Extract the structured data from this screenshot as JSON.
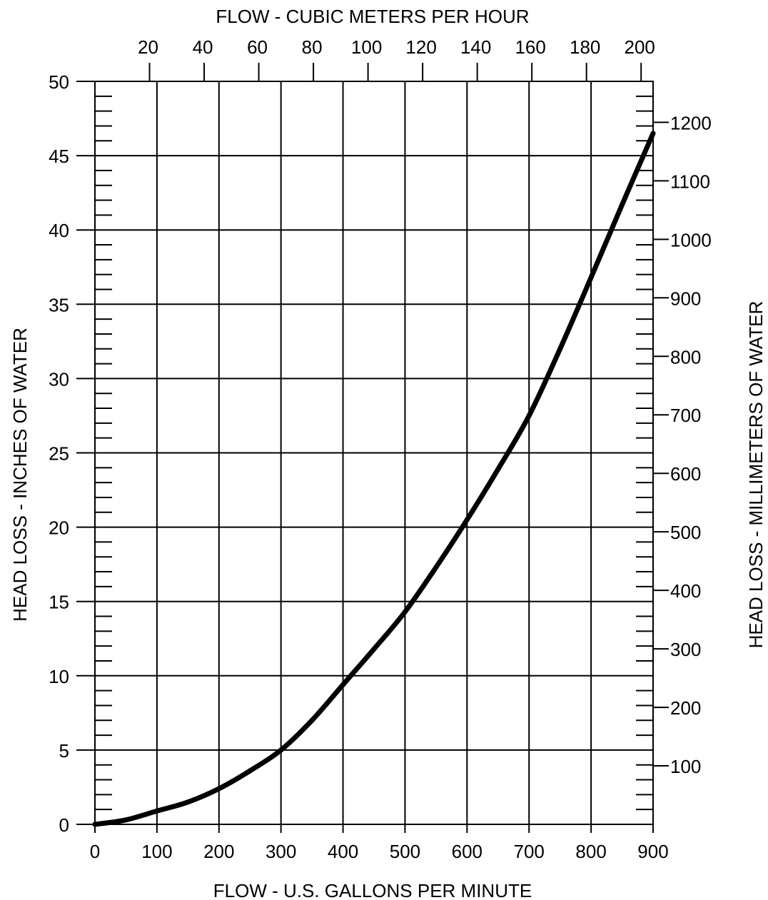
{
  "chart_data": {
    "type": "line",
    "title": "",
    "xlabel": "FLOW - U.S. GALLONS PER MINUTE",
    "ylabel": "HEAD LOSS - INCHES OF WATER",
    "x2label": "FLOW - CUBIC METERS PER HOUR",
    "y2label": "HEAD LOSS - MILLIMETERS OF WATER",
    "xlim": [
      0,
      900
    ],
    "ylim": [
      0,
      50
    ],
    "x_ticks": [
      0,
      100,
      200,
      300,
      400,
      500,
      600,
      700,
      800,
      900
    ],
    "y_ticks": [
      0,
      5,
      10,
      15,
      20,
      25,
      30,
      35,
      40,
      45,
      50
    ],
    "x2_ticks": [
      20,
      40,
      60,
      80,
      100,
      120,
      140,
      160,
      180,
      200
    ],
    "y2_ticks": [
      100,
      200,
      300,
      400,
      500,
      600,
      700,
      800,
      900,
      1000,
      1100,
      1200
    ],
    "x2_per_x": 0.2271,
    "y2_per_y": 25.4,
    "grid": true,
    "line_color": "#000000",
    "series": [
      {
        "x": [
          0,
          50,
          100,
          150,
          200,
          250,
          300,
          350,
          400,
          450,
          500,
          550,
          600,
          650,
          700,
          750,
          800,
          850,
          900
        ],
        "values": [
          0,
          0.3,
          0.9,
          1.5,
          2.4,
          3.6,
          5.0,
          7.0,
          9.4,
          11.8,
          14.3,
          17.3,
          20.5,
          23.9,
          27.5,
          32.0,
          36.8,
          41.7,
          46.5
        ]
      }
    ]
  }
}
